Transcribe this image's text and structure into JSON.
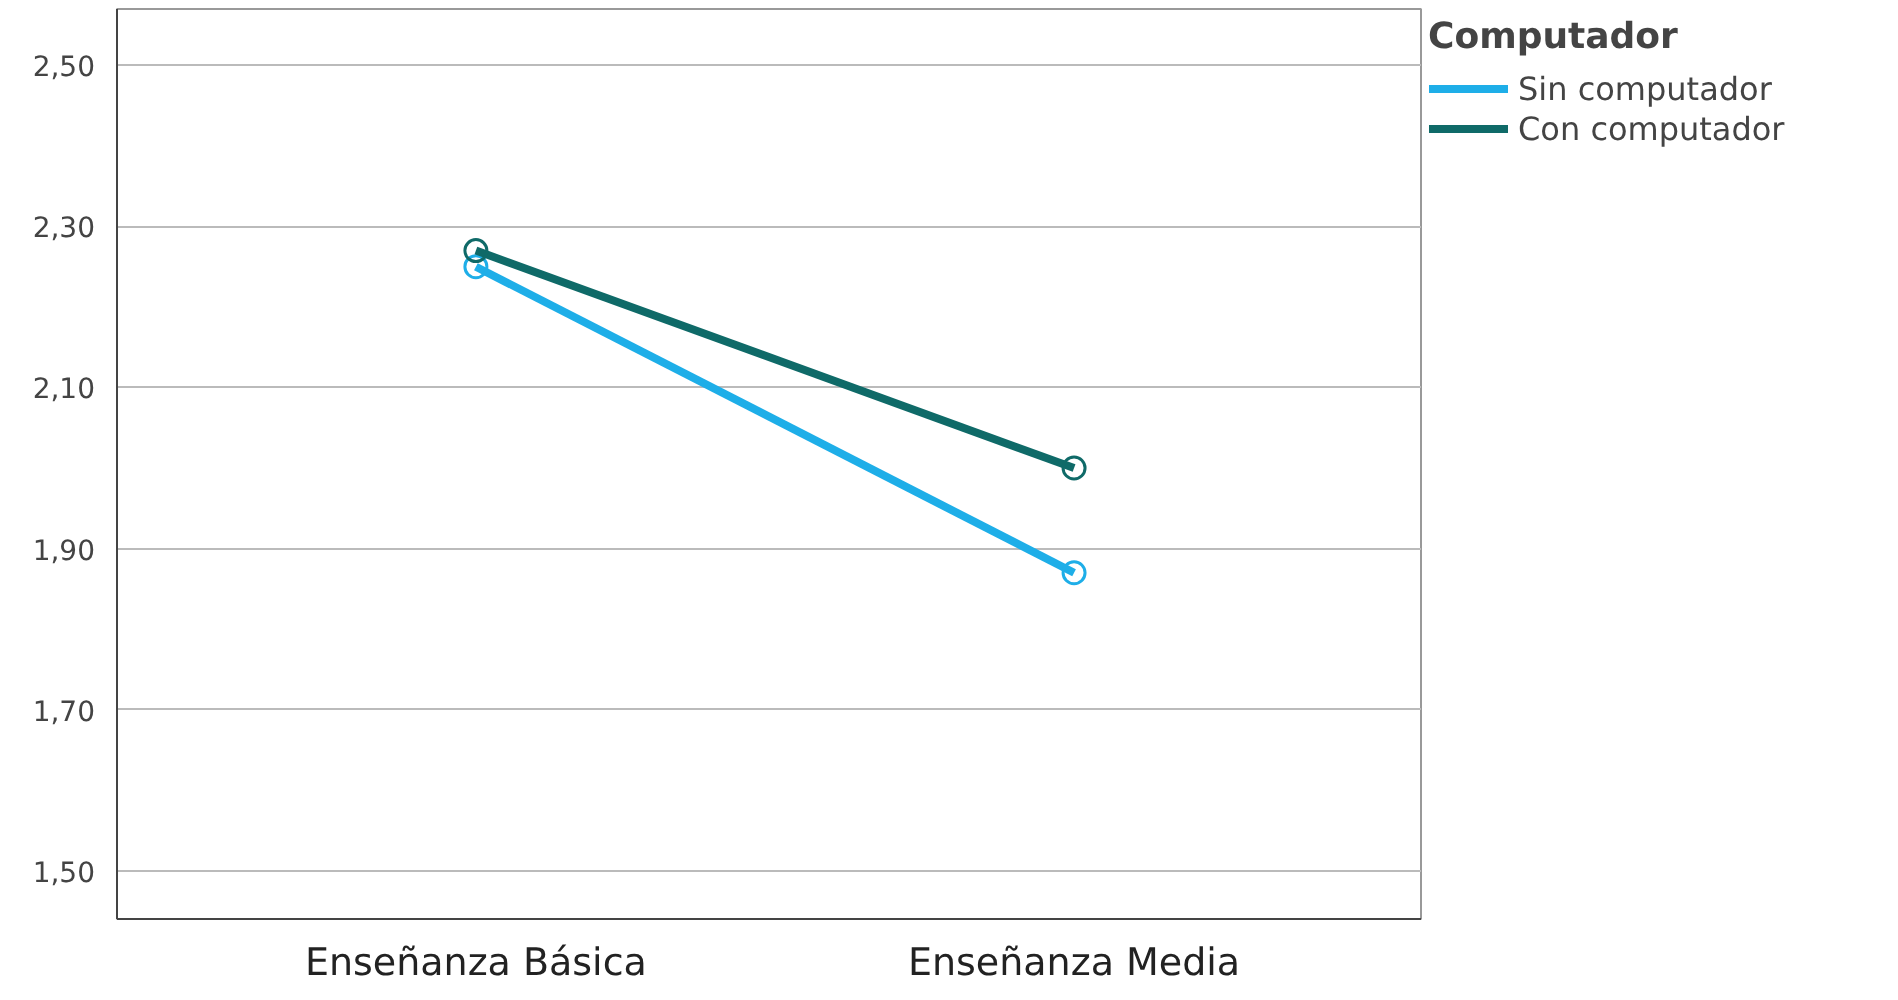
{
  "chart_data": {
    "type": "line",
    "categories": [
      "Enseñanza Básica",
      "Enseñanza Media"
    ],
    "legend_title": "Computador",
    "legend": "top right",
    "grid": "y",
    "marker": "circle",
    "line_style": "solid",
    "ylim": [
      1.44,
      2.57
    ],
    "yticks": [
      {
        "value": 1.5,
        "label": "1,50"
      },
      {
        "value": 1.7,
        "label": "1,70"
      },
      {
        "value": 1.9,
        "label": "1,90"
      },
      {
        "value": 2.1,
        "label": "2,10"
      },
      {
        "value": 2.3,
        "label": "2,30"
      },
      {
        "value": 2.5,
        "label": "2,50"
      }
    ],
    "series": [
      {
        "name": "Sin computador",
        "color": "#1eaee8",
        "values": [
          2.25,
          1.87
        ]
      },
      {
        "name": "Con computador",
        "color": "#0f6a68",
        "values": [
          2.27,
          2.0
        ]
      }
    ]
  }
}
